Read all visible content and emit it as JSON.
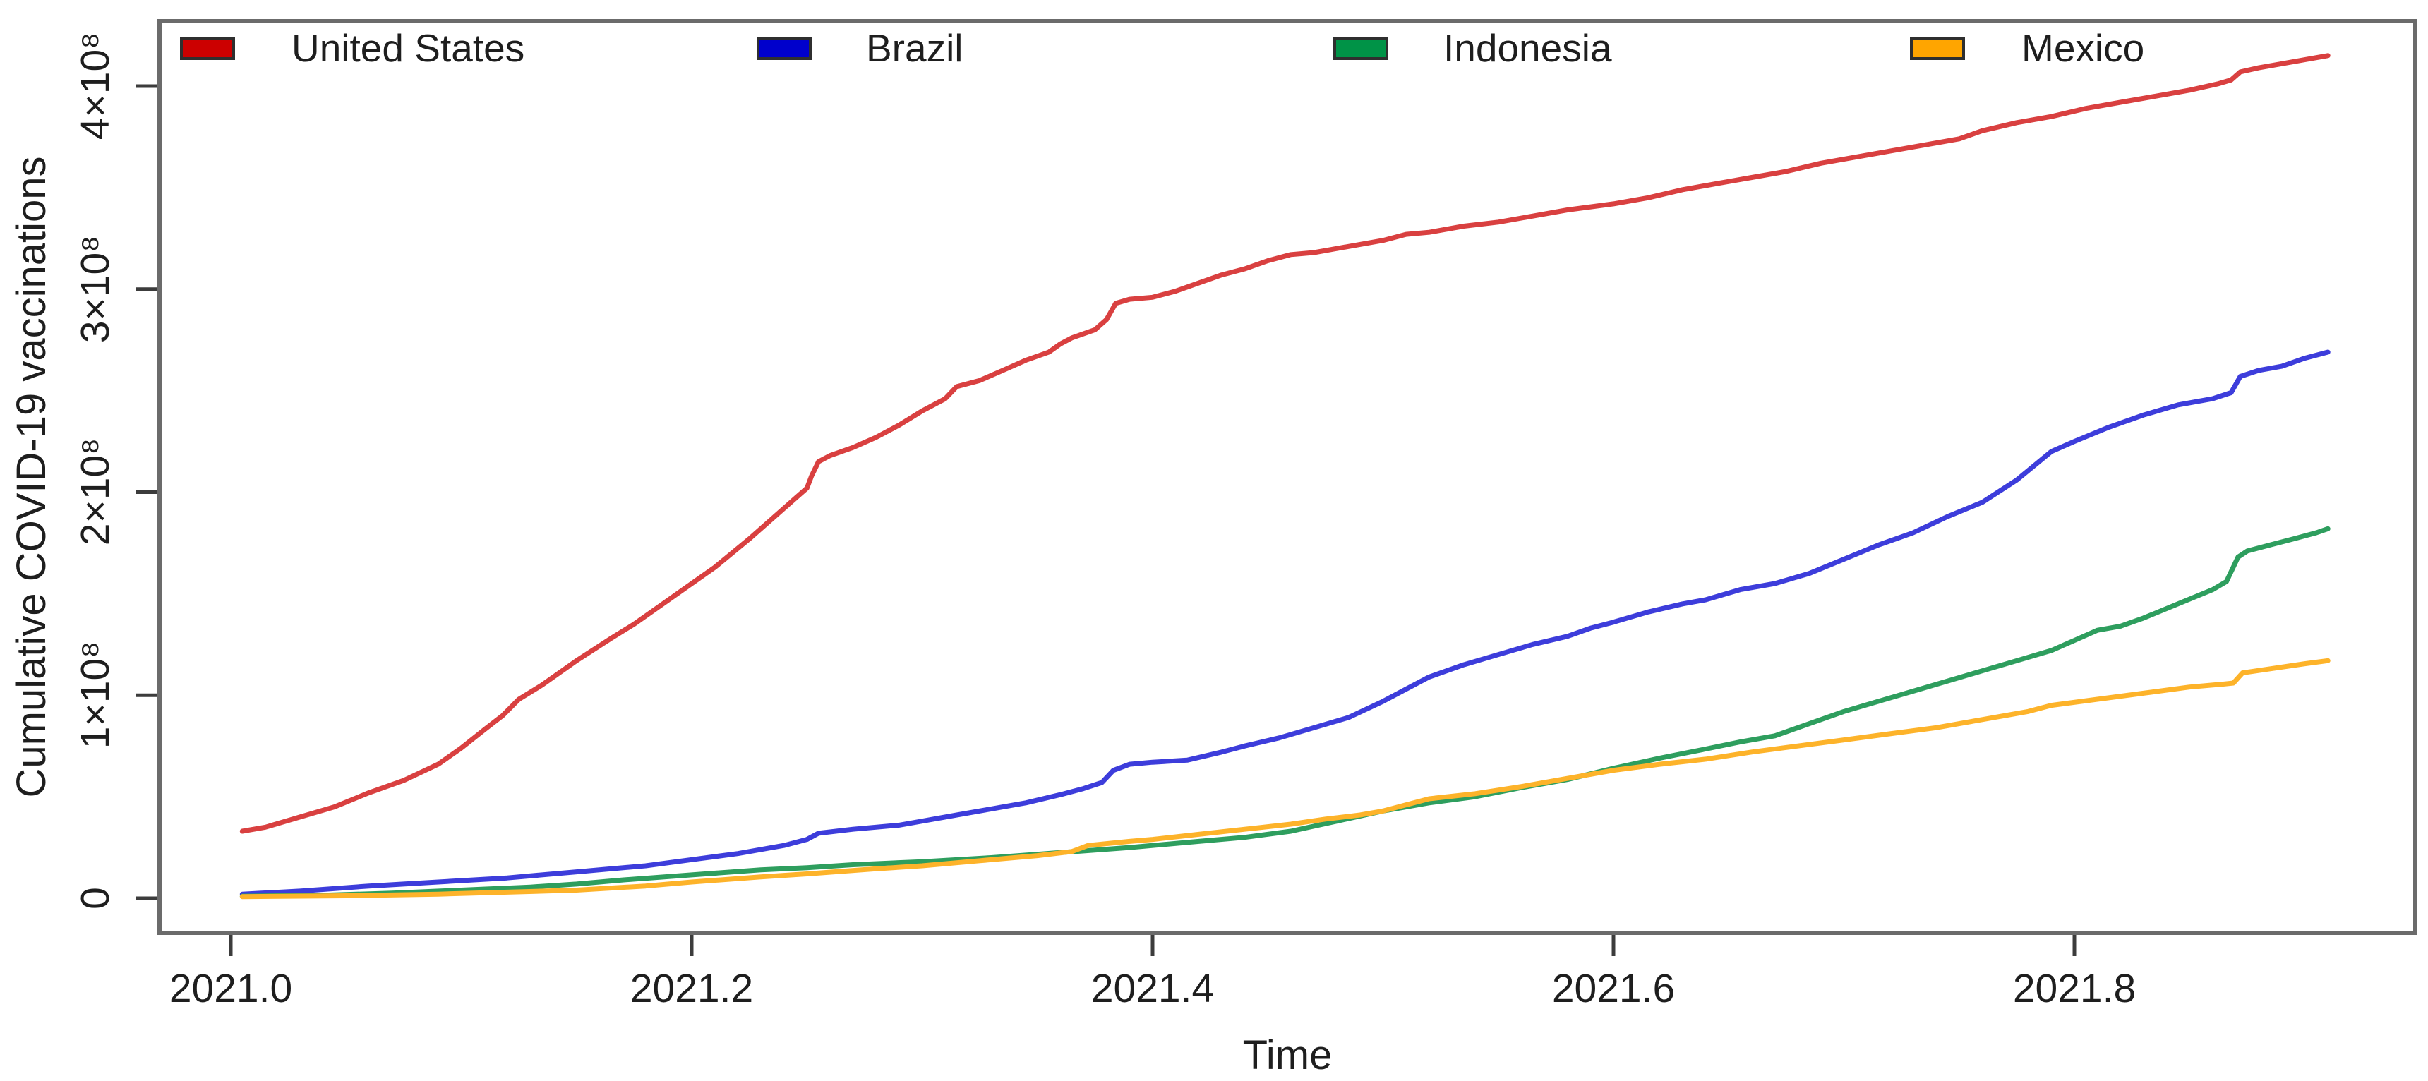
{
  "figure": {
    "x_axis_title": "Time",
    "y_axis_title": "Cumulative COVID-19 vaccinations",
    "x_ticks": [
      {
        "label": "2021.0",
        "t": 2021.0
      },
      {
        "label": "2021.2",
        "t": 2021.2
      },
      {
        "label": "2021.4",
        "t": 2021.4
      },
      {
        "label": "2021.6",
        "t": 2021.6
      },
      {
        "label": "2021.8",
        "t": 2021.8
      }
    ],
    "y_ticks": [
      {
        "label": "0",
        "v": 0
      },
      {
        "label": "1×10⁸",
        "v": 1
      },
      {
        "label": "2×10⁸",
        "v": 2
      },
      {
        "label": "3×10⁸",
        "v": 3
      },
      {
        "label": "4×10⁸",
        "v": 4
      }
    ]
  },
  "legend": {
    "items": [
      {
        "label": "United States",
        "swatch_color": "#cc0000"
      },
      {
        "label": "Brazil",
        "swatch_color": "#0000cc"
      },
      {
        "label": "Indonesia",
        "swatch_color": "#009347"
      },
      {
        "label": "Mexico",
        "swatch_color": "#ffa500"
      }
    ]
  },
  "chart_data": {
    "type": "line",
    "title": "",
    "xlabel": "Time",
    "ylabel": "Cumulative COVID-19 vaccinations",
    "x_unit": "decimal year",
    "y_unit": "vaccinations (values in multiples of 1e8)",
    "xlim": [
      2020.97,
      2021.946
    ],
    "ylim": [
      0,
      4.32
    ],
    "grid": false,
    "legend_position": "top inside, horizontal row",
    "series": [
      {
        "name": "United States",
        "color": "#d94040",
        "x": [
          2021.005,
          2021.015,
          2021.03,
          2021.045,
          2021.06,
          2021.075,
          2021.09,
          2021.1,
          2021.11,
          2021.118,
          2021.125,
          2021.135,
          2021.15,
          2021.165,
          2021.175,
          2021.19,
          2021.2,
          2021.21,
          2021.225,
          2021.235,
          2021.245,
          2021.25,
          2021.252,
          2021.255,
          2021.26,
          2021.27,
          2021.28,
          2021.29,
          2021.3,
          2021.31,
          2021.315,
          2021.325,
          2021.335,
          2021.345,
          2021.355,
          2021.36,
          2021.365,
          2021.37,
          2021.375,
          2021.38,
          2021.384,
          2021.39,
          2021.4,
          2021.41,
          2021.42,
          2021.43,
          2021.44,
          2021.45,
          2021.46,
          2021.47,
          2021.48,
          2021.49,
          2021.5,
          2021.51,
          2021.52,
          2021.535,
          2021.55,
          2021.565,
          2021.58,
          2021.6,
          2021.615,
          2021.63,
          2021.645,
          2021.66,
          2021.675,
          2021.69,
          2021.705,
          2021.72,
          2021.735,
          2021.75,
          2021.76,
          2021.775,
          2021.79,
          2021.805,
          2021.82,
          2021.835,
          2021.85,
          2021.862,
          2021.868,
          2021.872,
          2021.88,
          2021.89,
          2021.9,
          2021.91
        ],
        "y": [
          0.33,
          0.35,
          0.4,
          0.45,
          0.52,
          0.58,
          0.66,
          0.74,
          0.83,
          0.9,
          0.98,
          1.05,
          1.17,
          1.28,
          1.35,
          1.47,
          1.55,
          1.63,
          1.77,
          1.87,
          1.97,
          2.02,
          2.08,
          2.15,
          2.18,
          2.22,
          2.27,
          2.33,
          2.4,
          2.46,
          2.52,
          2.55,
          2.6,
          2.65,
          2.69,
          2.73,
          2.76,
          2.78,
          2.8,
          2.85,
          2.93,
          2.95,
          2.96,
          2.99,
          3.03,
          3.07,
          3.1,
          3.14,
          3.17,
          3.18,
          3.2,
          3.22,
          3.24,
          3.27,
          3.28,
          3.31,
          3.33,
          3.36,
          3.39,
          3.42,
          3.45,
          3.49,
          3.52,
          3.55,
          3.58,
          3.62,
          3.65,
          3.68,
          3.71,
          3.74,
          3.78,
          3.82,
          3.85,
          3.89,
          3.92,
          3.95,
          3.98,
          4.01,
          4.03,
          4.07,
          4.09,
          4.11,
          4.13,
          4.15
        ]
      },
      {
        "name": "Brazil",
        "color": "#3d3ddb",
        "x": [
          2021.005,
          2021.03,
          2021.06,
          2021.09,
          2021.12,
          2021.15,
          2021.18,
          2021.2,
          2021.22,
          2021.24,
          2021.25,
          2021.255,
          2021.27,
          2021.29,
          2021.3,
          2021.315,
          2021.33,
          2021.345,
          2021.36,
          2021.37,
          2021.378,
          2021.383,
          2021.39,
          2021.4,
          2021.415,
          2021.43,
          2021.44,
          2021.455,
          2021.47,
          2021.485,
          2021.5,
          2021.51,
          2021.52,
          2021.535,
          2021.55,
          2021.565,
          2021.58,
          2021.59,
          2021.6,
          2021.615,
          2021.63,
          2021.64,
          2021.655,
          2021.67,
          2021.685,
          2021.7,
          2021.715,
          2021.73,
          2021.745,
          2021.76,
          2021.775,
          2021.79,
          2021.8,
          2021.815,
          2021.83,
          2021.845,
          2021.86,
          2021.868,
          2021.872,
          2021.88,
          2021.89,
          2021.9,
          2021.91
        ],
        "y": [
          0.02,
          0.035,
          0.06,
          0.08,
          0.1,
          0.13,
          0.16,
          0.19,
          0.22,
          0.26,
          0.29,
          0.32,
          0.34,
          0.36,
          0.38,
          0.41,
          0.44,
          0.47,
          0.51,
          0.54,
          0.57,
          0.63,
          0.66,
          0.67,
          0.68,
          0.72,
          0.75,
          0.79,
          0.84,
          0.89,
          0.97,
          1.03,
          1.09,
          1.15,
          1.2,
          1.25,
          1.29,
          1.33,
          1.36,
          1.41,
          1.45,
          1.47,
          1.52,
          1.55,
          1.6,
          1.67,
          1.74,
          1.8,
          1.88,
          1.95,
          2.06,
          2.2,
          2.25,
          2.32,
          2.38,
          2.43,
          2.46,
          2.49,
          2.57,
          2.6,
          2.62,
          2.66,
          2.69
        ]
      },
      {
        "name": "Indonesia",
        "color": "#2e9e5e",
        "x": [
          2021.005,
          2021.04,
          2021.07,
          2021.1,
          2021.13,
          2021.15,
          2021.17,
          2021.2,
          2021.23,
          2021.25,
          2021.27,
          2021.3,
          2021.33,
          2021.36,
          2021.39,
          2021.42,
          2021.44,
          2021.46,
          2021.48,
          2021.5,
          2021.52,
          2021.54,
          2021.56,
          2021.58,
          2021.6,
          2021.62,
          2021.64,
          2021.655,
          2021.67,
          2021.68,
          2021.7,
          2021.715,
          2021.73,
          2021.745,
          2021.76,
          2021.775,
          2021.79,
          2021.8,
          2021.81,
          2021.82,
          2021.83,
          2021.845,
          2021.86,
          2021.866,
          2021.871,
          2021.875,
          2021.885,
          2021.895,
          2021.905,
          2021.91
        ],
        "y": [
          0.01,
          0.015,
          0.025,
          0.04,
          0.055,
          0.07,
          0.09,
          0.115,
          0.14,
          0.15,
          0.165,
          0.18,
          0.2,
          0.225,
          0.25,
          0.28,
          0.3,
          0.33,
          0.38,
          0.43,
          0.47,
          0.5,
          0.545,
          0.585,
          0.64,
          0.69,
          0.735,
          0.77,
          0.8,
          0.84,
          0.92,
          0.97,
          1.02,
          1.07,
          1.12,
          1.17,
          1.22,
          1.27,
          1.32,
          1.34,
          1.38,
          1.45,
          1.52,
          1.56,
          1.68,
          1.71,
          1.74,
          1.77,
          1.8,
          1.82
        ]
      },
      {
        "name": "Mexico",
        "color": "#fdb32a",
        "x": [
          2021.005,
          2021.05,
          2021.09,
          2021.12,
          2021.15,
          2021.18,
          2021.2,
          2021.23,
          2021.25,
          2021.28,
          2021.3,
          2021.325,
          2021.35,
          2021.365,
          2021.372,
          2021.39,
          2021.4,
          2021.42,
          2021.44,
          2021.46,
          2021.475,
          2021.49,
          2021.5,
          2021.51,
          2021.52,
          2021.54,
          2021.56,
          2021.58,
          2021.6,
          2021.62,
          2021.64,
          2021.66,
          2021.68,
          2021.7,
          2021.72,
          2021.74,
          2021.76,
          2021.78,
          2021.79,
          2021.81,
          2021.83,
          2021.85,
          2021.865,
          2021.869,
          2021.873,
          2021.885,
          2021.9,
          2021.91
        ],
        "y": [
          0.008,
          0.012,
          0.02,
          0.03,
          0.04,
          0.06,
          0.08,
          0.105,
          0.12,
          0.145,
          0.16,
          0.185,
          0.21,
          0.23,
          0.26,
          0.28,
          0.29,
          0.315,
          0.34,
          0.365,
          0.39,
          0.41,
          0.43,
          0.46,
          0.49,
          0.515,
          0.55,
          0.59,
          0.63,
          0.66,
          0.685,
          0.72,
          0.75,
          0.78,
          0.81,
          0.84,
          0.88,
          0.92,
          0.95,
          0.98,
          1.01,
          1.04,
          1.055,
          1.06,
          1.11,
          1.13,
          1.155,
          1.17
        ]
      }
    ]
  }
}
